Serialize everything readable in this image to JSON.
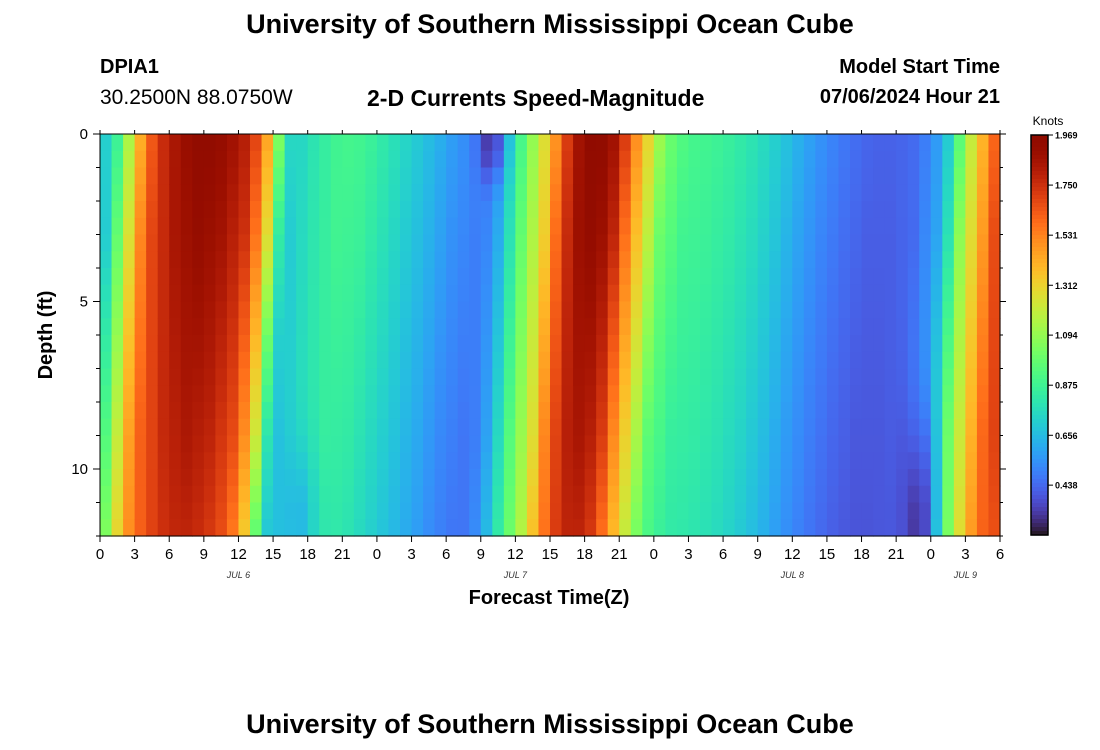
{
  "header": {
    "title": "University of Southern Mississippi Ocean Cube",
    "station_id": "DPIA1",
    "station_coords": "30.2500N  88.0750W",
    "chart_title": "2-D Currents Speed-Magnitude",
    "model_start_label": "Model Start Time",
    "model_start_value": "07/06/2024 Hour 21"
  },
  "footer": {
    "title": "University of Southern Mississippi Ocean Cube"
  },
  "chart_data": {
    "type": "heatmap",
    "title": "2-D Currents Speed-Magnitude",
    "xlabel": "Forecast Time(Z)",
    "ylabel": "Depth (ft)",
    "x_hours_range": [
      0,
      78
    ],
    "x_tick_labels": [
      "0",
      "3",
      "6",
      "9",
      "12",
      "15",
      "18",
      "21",
      "0",
      "3",
      "6",
      "9",
      "12",
      "15",
      "18",
      "21",
      "0",
      "3",
      "6",
      "9",
      "12",
      "15",
      "18",
      "21",
      "0",
      "3",
      "6"
    ],
    "date_labels": [
      {
        "label": "JUL 6",
        "hour": 12
      },
      {
        "label": "JUL 7",
        "hour": 36
      },
      {
        "label": "JUL 8",
        "hour": 60
      },
      {
        "label": "JUL 9",
        "hour": 75
      }
    ],
    "y_range_ft": [
      0,
      12
    ],
    "y_inverted": true,
    "y_tick_labels": [
      "0",
      "5",
      "10"
    ],
    "y_tick_values": [
      0,
      5,
      10
    ],
    "colorbar": {
      "unit": "Knots",
      "min": 0.22,
      "max": 1.969,
      "tick_labels": [
        "1.969",
        "1.750",
        "1.531",
        "1.312",
        "1.094",
        "0.875",
        "0.656",
        "0.438"
      ],
      "tick_values": [
        1.969,
        1.75,
        1.531,
        1.312,
        1.094,
        0.875,
        0.656,
        0.438
      ],
      "colormap": "turbo"
    },
    "surface_profile_knots": {
      "hours": [
        0,
        1,
        2,
        3,
        4,
        6,
        8,
        10,
        12,
        13,
        14,
        14.5,
        15,
        15.5,
        16,
        18,
        20,
        22,
        24,
        26,
        28,
        30,
        32,
        33,
        34,
        35,
        36,
        38,
        39,
        40,
        41,
        42,
        43,
        44,
        46,
        48,
        50,
        52,
        54,
        56,
        58,
        60,
        62,
        64,
        66,
        68,
        70,
        72,
        73,
        74,
        75,
        76,
        77,
        78
      ],
      "speeds": [
        0.72,
        1.0,
        1.28,
        1.55,
        1.72,
        1.88,
        1.95,
        1.9,
        1.78,
        1.6,
        1.3,
        1.05,
        0.85,
        0.75,
        0.72,
        0.82,
        0.9,
        0.88,
        0.8,
        0.72,
        0.64,
        0.55,
        0.5,
        0.52,
        0.62,
        0.8,
        1.0,
        1.35,
        1.62,
        1.8,
        1.92,
        1.96,
        1.92,
        1.82,
        1.4,
        1.02,
        0.9,
        0.88,
        0.84,
        0.78,
        0.7,
        0.6,
        0.52,
        0.46,
        0.42,
        0.42,
        0.45,
        0.6,
        0.8,
        1.1,
        1.3,
        1.5,
        1.7,
        1.8
      ]
    }
  }
}
